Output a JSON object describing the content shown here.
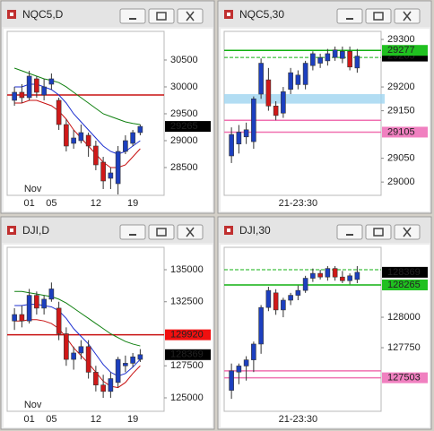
{
  "chart_data": [
    {
      "type": "candlestick",
      "title": "NQC5,D",
      "month": "Nov",
      "up_color": "#1c3fbf",
      "down_color": "#d01818",
      "categories": [
        null,
        null,
        "01",
        null,
        null,
        "05",
        null,
        null,
        null,
        null,
        null,
        "12",
        null,
        null,
        null,
        null,
        "19",
        null
      ],
      "open": [
        29750,
        29900,
        29800,
        30150,
        29850,
        30050,
        29750,
        29300,
        28950,
        29000,
        29100,
        28900,
        28600,
        28300,
        28200,
        28800,
        28950,
        29150
      ],
      "high": [
        30000,
        30050,
        30300,
        30200,
        30150,
        30250,
        29800,
        29400,
        29200,
        29300,
        29150,
        29000,
        28700,
        28500,
        28900,
        29100,
        29200,
        29300
      ],
      "low": [
        29650,
        29700,
        29750,
        29800,
        29750,
        29950,
        29200,
        28800,
        28850,
        28950,
        28700,
        28450,
        28100,
        28100,
        28000,
        28750,
        28900,
        29100
      ],
      "close": [
        29900,
        29800,
        30200,
        29900,
        30000,
        30150,
        29300,
        28900,
        29050,
        29150,
        28900,
        28550,
        28250,
        28400,
        28800,
        29000,
        29150,
        29265
      ],
      "series": [
        {
          "color": "#108010",
          "values": [
            30350,
            30300,
            30250,
            30200,
            30150,
            30120,
            30080,
            30000,
            29900,
            29800,
            29700,
            29600,
            29500,
            29450,
            29400,
            29350,
            29320,
            29300
          ]
        },
        {
          "color": "#1c2fd0",
          "values": [
            30000,
            30000,
            30050,
            30050,
            30000,
            29950,
            29850,
            29700,
            29500,
            29350,
            29200,
            29050,
            28900,
            28800,
            28750,
            28800,
            28900,
            29000
          ]
        },
        {
          "color": "#c81010",
          "values": [
            29700,
            29700,
            29750,
            29750,
            29700,
            29650,
            29550,
            29400,
            29200,
            29050,
            28900,
            28750,
            28600,
            28500,
            28500,
            28550,
            28700,
            28850
          ]
        }
      ],
      "levels": [
        {
          "value": 29850,
          "color": "#c81010",
          "style": "solid"
        }
      ],
      "price_labels": [
        {
          "value": 29265,
          "color": "#000000",
          "text_color": "#ffffff"
        }
      ],
      "ylim": [
        27983,
        31033
      ],
      "yticks": [
        28500,
        29000,
        29500,
        30000,
        30500
      ]
    },
    {
      "type": "candlestick",
      "title": "NQC5,30",
      "up_color": "#1c3fbf",
      "down_color": "#d01818",
      "categories": [
        null,
        null,
        null,
        null,
        null,
        null,
        null,
        null,
        null,
        "21-23:30",
        null,
        null,
        null,
        null,
        null,
        null,
        null,
        null
      ],
      "open": [
        29055,
        29080,
        29095,
        29085,
        29185,
        29215,
        29160,
        29145,
        29195,
        29205,
        29205,
        29245,
        29250,
        29255,
        29262,
        29260,
        29275,
        29240
      ],
      "high": [
        29115,
        29120,
        29125,
        29180,
        29260,
        29240,
        29170,
        29200,
        29240,
        29235,
        29255,
        29275,
        29270,
        29280,
        29285,
        29285,
        29285,
        29280
      ],
      "low": [
        29040,
        29060,
        29080,
        29070,
        29175,
        29150,
        29130,
        29135,
        29185,
        29195,
        29195,
        29235,
        29240,
        29245,
        29255,
        29250,
        29235,
        29230
      ],
      "close": [
        29100,
        29105,
        29110,
        29175,
        29250,
        29160,
        29140,
        29190,
        29230,
        29225,
        29250,
        29270,
        29262,
        29270,
        29278,
        29275,
        29242,
        29265
      ],
      "series": [],
      "band": [
        29165,
        29185
      ],
      "band_color": "#9fd4f0",
      "levels": [
        {
          "value": 29277,
          "color": "#10b010",
          "style": "solid"
        },
        {
          "value": 29262,
          "color": "#10b010",
          "style": "dashed"
        },
        {
          "value": 29130,
          "color": "#f070b0",
          "style": "solid"
        },
        {
          "value": 29105,
          "color": "#f070b0",
          "style": "solid"
        }
      ],
      "price_labels": [
        {
          "value": 29265,
          "color": "#000000",
          "text_color": "#ffffff"
        },
        {
          "value": 29277,
          "color": "#20c020",
          "text_color": "#000000"
        },
        {
          "value": 29105,
          "color": "#f080c0",
          "text_color": "#000000"
        }
      ],
      "ylim": [
        28972,
        29317
      ],
      "yticks": [
        29000,
        29050,
        29150,
        29200,
        29300
      ]
    },
    {
      "type": "candlestick",
      "title": "DJI,D",
      "month": "Nov",
      "up_color": "#1c3fbf",
      "down_color": "#d01818",
      "categories": [
        null,
        null,
        "01",
        null,
        null,
        "05",
        null,
        null,
        null,
        null,
        null,
        "12",
        null,
        null,
        null,
        null,
        "19",
        null
      ],
      "open": [
        131000,
        131500,
        131000,
        133000,
        132000,
        132700,
        132000,
        130000,
        128000,
        128500,
        129000,
        127000,
        126000,
        125500,
        126200,
        127500,
        127700,
        128000
      ],
      "high": [
        132000,
        132200,
        133500,
        133300,
        133000,
        134000,
        132500,
        130500,
        129000,
        129500,
        129500,
        127500,
        126800,
        127000,
        128200,
        128300,
        128500,
        128800
      ],
      "low": [
        130300,
        130500,
        130800,
        131500,
        131500,
        132500,
        129500,
        127500,
        127200,
        128000,
        126500,
        125500,
        125000,
        125000,
        125800,
        127000,
        127400,
        127800
      ],
      "close": [
        131500,
        131000,
        133000,
        132000,
        132700,
        133500,
        130000,
        128000,
        128500,
        129000,
        127000,
        126000,
        125500,
        126500,
        128000,
        127700,
        128200,
        128369
      ],
      "series": [
        {
          "color": "#108010",
          "values": [
            133300,
            133300,
            133200,
            133100,
            133000,
            132900,
            132700,
            132400,
            132000,
            131600,
            131200,
            130800,
            130400,
            130000,
            129700,
            129400,
            129200,
            129050
          ]
        },
        {
          "color": "#1c2fd0",
          "values": [
            132200,
            132200,
            132300,
            132300,
            132200,
            132100,
            131800,
            131200,
            130400,
            129800,
            129200,
            128400,
            127600,
            127000,
            126700,
            126900,
            127400,
            128000
          ]
        },
        {
          "color": "#c81010",
          "values": [
            131000,
            131000,
            131100,
            131100,
            131000,
            130800,
            130400,
            129700,
            128900,
            128300,
            127700,
            127000,
            126300,
            125900,
            125800,
            126200,
            126900,
            127500
          ]
        }
      ],
      "levels": [
        {
          "value": 129920,
          "color": "#c81010",
          "style": "solid"
        }
      ],
      "price_labels": [
        {
          "value": 129920,
          "color": "#f01010",
          "text_color": "#ffffff"
        },
        {
          "value": 128369,
          "color": "#000000",
          "text_color": "#ffffff"
        }
      ],
      "ylim": [
        123950,
        136748
      ],
      "yticks": [
        125000,
        127500,
        132500,
        135000
      ]
    },
    {
      "type": "candlestick",
      "title": "DJI,30",
      "up_color": "#1c3fbf",
      "down_color": "#d01818",
      "categories": [
        null,
        null,
        null,
        null,
        null,
        null,
        null,
        null,
        null,
        "21-23:30",
        null,
        null,
        null,
        null,
        null,
        null,
        null,
        null
      ],
      "open": [
        127400,
        127550,
        127600,
        127650,
        127780,
        128080,
        128200,
        128060,
        128140,
        128180,
        128220,
        128320,
        128360,
        128330,
        128400,
        128330,
        128300,
        128310
      ],
      "high": [
        127620,
        127620,
        127680,
        127800,
        128100,
        128250,
        128230,
        128160,
        128200,
        128260,
        128340,
        128400,
        128390,
        128420,
        128420,
        128380,
        128360,
        128420
      ],
      "low": [
        127330,
        127450,
        127480,
        127550,
        127700,
        128050,
        128020,
        128000,
        128100,
        128140,
        128200,
        128290,
        128310,
        128300,
        128300,
        128280,
        128270,
        128280
      ],
      "close": [
        127560,
        127600,
        127650,
        127780,
        128080,
        128220,
        128060,
        128140,
        128180,
        128220,
        128320,
        128360,
        128330,
        128400,
        128330,
        128300,
        128340,
        128369
      ],
      "series": [],
      "levels": [
        {
          "value": 128390,
          "color": "#10b010",
          "style": "dashed"
        },
        {
          "value": 128265,
          "color": "#10b010",
          "style": "solid"
        },
        {
          "value": 127560,
          "color": "#f070b0",
          "style": "solid"
        },
        {
          "value": 127503,
          "color": "#f070b0",
          "style": "solid"
        }
      ],
      "price_labels": [
        {
          "value": 128369,
          "color": "#000000",
          "text_color": "#ffffff"
        },
        {
          "value": 128265,
          "color": "#20c020",
          "text_color": "#000000"
        },
        {
          "value": 127503,
          "color": "#f080c0",
          "text_color": "#000000"
        }
      ],
      "ylim": [
        127228,
        128574
      ],
      "yticks": [
        127750,
        128000
      ]
    }
  ]
}
